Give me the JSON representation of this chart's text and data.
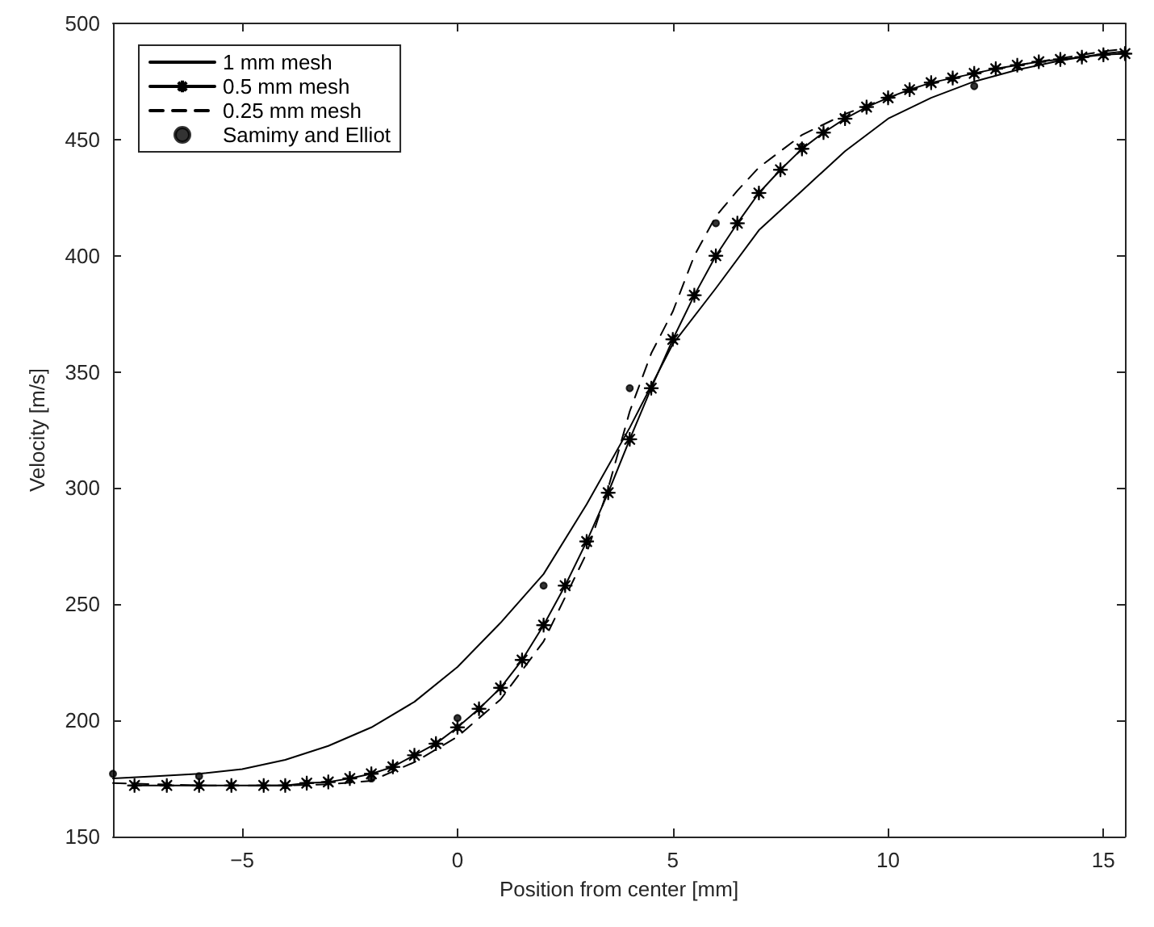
{
  "chart_data": {
    "type": "line",
    "xlabel": "Position from center [mm]",
    "ylabel": "Velocity [m/s]",
    "xlim": [
      -8,
      15.5
    ],
    "ylim": [
      150,
      500
    ],
    "xticks": [
      {
        "value": -5,
        "label": "−5"
      },
      0,
      5,
      10,
      15
    ],
    "yticks": [
      150,
      200,
      250,
      300,
      350,
      400,
      450,
      500
    ],
    "grid": false,
    "legend": "top left",
    "series": [
      {
        "name": "1 mm mesh",
        "color": "#000000",
        "marker": "none",
        "line_style": "solid",
        "x": [
          -8,
          -7,
          -6,
          -5,
          -4,
          -3,
          -2,
          -1,
          0,
          1,
          2,
          3,
          4,
          5,
          6,
          7,
          8,
          9,
          10,
          11,
          12,
          13,
          14,
          15,
          15.5
        ],
        "values": [
          175,
          176,
          177,
          179,
          183,
          189,
          197,
          208,
          223,
          242,
          263,
          293,
          326,
          362,
          386,
          411,
          428,
          445,
          459,
          468,
          475,
          480,
          484,
          487,
          488
        ]
      },
      {
        "name": "0.5 mm mesh",
        "color": "#000000",
        "marker": "star",
        "line_style": "solid",
        "x": [
          -7.5,
          -6.75,
          -6,
          -5.25,
          -4.5,
          -4,
          -3.5,
          -3,
          -2.5,
          -2,
          -1.5,
          -1,
          -0.5,
          0,
          0.5,
          1,
          1.5,
          2,
          2.5,
          3,
          3.5,
          4,
          4.5,
          5,
          5.5,
          6,
          6.5,
          7,
          7.5,
          8,
          8.5,
          9,
          9.5,
          10,
          10.5,
          11,
          11.5,
          12,
          12.5,
          13,
          13.5,
          14,
          14.5,
          15,
          15.5
        ],
        "values": [
          172,
          172,
          172,
          172,
          172,
          172,
          173,
          173.5,
          175,
          177,
          180,
          185,
          190,
          197,
          205,
          214,
          226,
          241,
          258,
          277,
          298,
          321,
          343,
          364,
          383,
          400,
          414,
          427,
          437,
          446,
          453,
          459,
          464,
          468,
          471.5,
          474.5,
          476.5,
          478.5,
          480.5,
          482,
          483.5,
          484.5,
          485.5,
          486.5,
          487
        ]
      },
      {
        "name": "0.25 mm mesh",
        "color": "#000000",
        "marker": "none",
        "line_style": "dashed",
        "x": [
          -8,
          -6,
          -4,
          -3,
          -2,
          -1,
          0,
          1,
          2,
          3,
          3.5,
          4,
          4.5,
          5,
          5.5,
          6,
          6.5,
          7,
          8,
          9,
          10,
          11,
          12,
          13,
          14,
          15,
          15.5
        ],
        "values": [
          173,
          172,
          172,
          172.5,
          174,
          182,
          193,
          209,
          234,
          272,
          300,
          333,
          358,
          376,
          400,
          417,
          428,
          438,
          452,
          461,
          468,
          474,
          478.5,
          482,
          485,
          488,
          489
        ]
      },
      {
        "name": "Samimy and Elliot",
        "type": "scatter",
        "color": "#000000",
        "marker": "circle",
        "x": [
          -8,
          -6,
          -2,
          0,
          2,
          4,
          6,
          8,
          12
        ],
        "values": [
          177,
          176,
          175,
          201,
          258,
          343,
          414,
          447,
          473
        ]
      }
    ]
  }
}
